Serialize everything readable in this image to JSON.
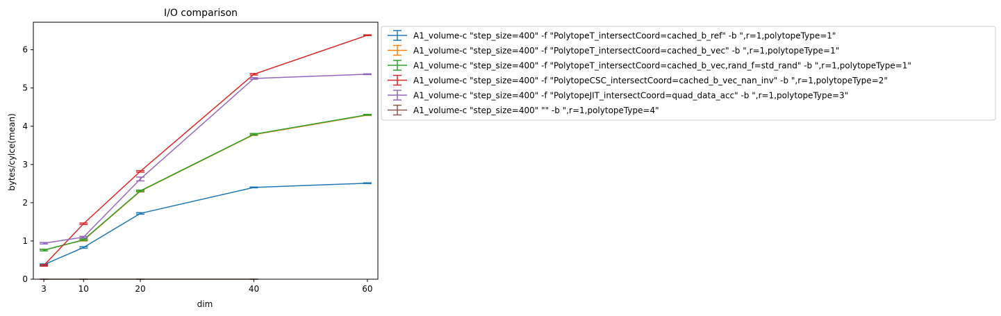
{
  "chart_data": {
    "type": "line",
    "title": "I/O comparison",
    "xlabel": "dim",
    "ylabel": "bytes/cylce(mean)",
    "x": [
      3,
      10,
      20,
      40,
      60
    ],
    "x_ticks": [
      "3",
      "10",
      "20",
      "40",
      "60"
    ],
    "xlim": [
      1.15,
      61.85
    ],
    "ylim": [
      0,
      6.72
    ],
    "y_ticks": [
      "0",
      "1",
      "2",
      "3",
      "4",
      "5",
      "6"
    ],
    "grid": false,
    "legend_position": "outside-right",
    "error_bars": true,
    "series": [
      {
        "name": "A1_volume-c \"step_size=400\" -f \"PolytopeT_intersectCoord=cached_b_ref\" -b \",r=1,polytopeType=1\"",
        "color": "#1f77b4",
        "x": [
          3,
          10,
          20,
          40,
          60
        ],
        "values": [
          0.38,
          0.83,
          1.72,
          2.4,
          2.51
        ],
        "err": [
          0.02,
          0.02,
          0.02,
          0.01,
          0.01
        ]
      },
      {
        "name": "A1_volume-c \"step_size=400\" -f \"PolytopeT_intersectCoord=cached_b_vec\" -b \",r=1,polytopeType=1\"",
        "color": "#ff7f0e",
        "x": [
          3,
          10,
          20,
          40,
          60
        ],
        "values": [
          0.76,
          1.02,
          2.3,
          3.78,
          4.29
        ],
        "err": [
          0.02,
          0.02,
          0.02,
          0.02,
          0.01
        ]
      },
      {
        "name": "A1_volume-c \"step_size=400\" -f \"PolytopeT_intersectCoord=cached_b_vec,rand_f=std_rand\" -b \",r=1,polytopeType=1\"",
        "color": "#2ca02c",
        "x": [
          3,
          10,
          20,
          40,
          60
        ],
        "values": [
          0.76,
          1.03,
          2.31,
          3.79,
          4.3
        ],
        "err": [
          0.02,
          0.02,
          0.02,
          0.02,
          0.01
        ]
      },
      {
        "name": "A1_volume-c \"step_size=400\" -f \"PolytopeCSC_intersectCoord=cached_b_vec_nan_inv\" -b \",r=1,polytopeType=2\"",
        "color": "#d62728",
        "x": [
          3,
          10,
          20,
          40,
          60
        ],
        "values": [
          0.36,
          1.45,
          2.82,
          5.36,
          6.38
        ],
        "err": [
          0.02,
          0.02,
          0.02,
          0.02,
          0.01
        ]
      },
      {
        "name": "A1_volume-c \"step_size=400\" -f \"PolytopeJIT_intersectCoord=quad_data_acc\" -b \",r=1,polytopeType=3\"",
        "color": "#9467bd",
        "x": [
          3,
          10,
          20,
          40,
          60
        ],
        "values": [
          0.94,
          1.1,
          2.62,
          5.25,
          5.36
        ],
        "err": [
          0.02,
          0.02,
          0.05,
          0.02,
          0.01
        ]
      },
      {
        "name": "A1_volume-c \"step_size=400\"  \"\" -b \",r=1,polytopeType=4\"",
        "color": "#8c564b",
        "x": [
          3,
          10,
          20,
          40
        ],
        "values": [
          0.0,
          0.0,
          0.0,
          0.0
        ],
        "err": [
          0.0,
          0.0,
          0.0,
          0.0
        ]
      }
    ]
  }
}
